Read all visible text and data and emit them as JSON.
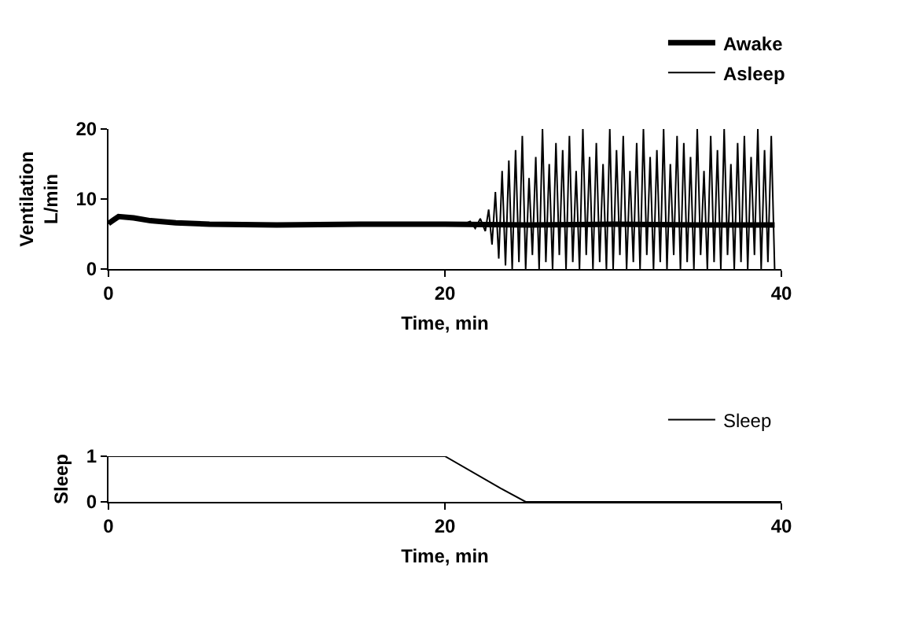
{
  "chart_data": [
    {
      "type": "line",
      "xlabel": "Time, min",
      "ylabel": "Ventilation\nL/min",
      "xlim": [
        0,
        40
      ],
      "xticks": [
        0,
        20,
        40
      ],
      "ylim": [
        0,
        20
      ],
      "yticks": [
        0,
        10,
        20
      ],
      "grid": false,
      "legend": "top right",
      "marker": "none",
      "line_style": "solid",
      "series": [
        {
          "name": "Awake",
          "color": "#000000",
          "x": [
            0,
            0.3,
            0.6,
            1.5,
            2.5,
            4,
            6,
            10,
            15,
            20,
            25,
            30,
            35,
            39.6
          ],
          "values": [
            6.5,
            7.0,
            7.5,
            7.3,
            6.9,
            6.6,
            6.4,
            6.3,
            6.4,
            6.4,
            6.3,
            6.4,
            6.3,
            6.3
          ]
        },
        {
          "name": "Asleep",
          "color": "#000000",
          "x": [
            0,
            0.3,
            0.6,
            1.5,
            2.5,
            4,
            6,
            10,
            15,
            20,
            21,
            21.5,
            21.8,
            22.1,
            22.4,
            22.6,
            22.8,
            23.0,
            23.2,
            23.4,
            23.6,
            23.8,
            24.0,
            24.2,
            24.4,
            24.6,
            24.8,
            25.0,
            25.2,
            25.4,
            25.6,
            25.8,
            26.0,
            26.2,
            26.4,
            26.6,
            26.8,
            27.0,
            27.2,
            27.4,
            27.6,
            27.8,
            28.0,
            28.2,
            28.4,
            28.6,
            28.8,
            29.0,
            29.2,
            29.4,
            29.6,
            29.8,
            30.0,
            30.2,
            30.4,
            30.6,
            30.8,
            31.0,
            31.2,
            31.4,
            31.6,
            31.8,
            32.0,
            32.2,
            32.4,
            32.6,
            32.8,
            33.0,
            33.2,
            33.4,
            33.6,
            33.8,
            34.0,
            34.2,
            34.4,
            34.6,
            34.8,
            35.0,
            35.2,
            35.4,
            35.6,
            35.8,
            36.0,
            36.2,
            36.4,
            36.6,
            36.8,
            37.0,
            37.2,
            37.4,
            37.6,
            37.8,
            38.0,
            38.2,
            38.4,
            38.6,
            38.8,
            39.0,
            39.2,
            39.4,
            39.6
          ],
          "values": [
            6.5,
            7.0,
            7.5,
            7.3,
            6.9,
            6.6,
            6.4,
            6.3,
            6.4,
            6.4,
            6.3,
            6.8,
            5.8,
            7.2,
            5.4,
            8.5,
            3.5,
            11,
            1.5,
            14,
            0.5,
            15.5,
            0,
            17,
            1,
            19,
            0,
            13,
            2,
            16,
            0,
            20,
            1,
            15,
            0,
            18,
            2,
            17,
            0,
            19,
            1,
            14,
            0,
            20,
            2,
            16,
            0,
            18,
            1,
            15,
            0,
            20,
            0,
            17,
            2,
            19,
            0,
            14,
            1,
            18,
            0,
            20,
            2,
            16,
            0,
            17,
            1,
            20,
            0,
            15,
            2,
            19,
            0,
            18,
            1,
            16,
            0,
            20,
            2,
            14,
            0,
            19,
            1,
            17,
            0,
            20,
            2,
            15,
            0,
            18,
            1,
            19,
            0,
            16,
            2,
            20,
            0,
            17,
            1,
            19,
            0
          ]
        }
      ]
    },
    {
      "type": "line",
      "xlabel": "Time, min",
      "ylabel": "Sleep",
      "xlim": [
        0,
        40
      ],
      "xticks": [
        0,
        20,
        40
      ],
      "ylim": [
        0,
        1
      ],
      "yticks": [
        0,
        1
      ],
      "grid": false,
      "legend": "top right",
      "marker": "none",
      "line_style": "solid",
      "series": [
        {
          "name": "Sleep",
          "color": "#000000",
          "x": [
            0,
            20,
            23.3,
            24.8,
            40
          ],
          "values": [
            1,
            1,
            0.3,
            0,
            0
          ]
        }
      ]
    }
  ]
}
